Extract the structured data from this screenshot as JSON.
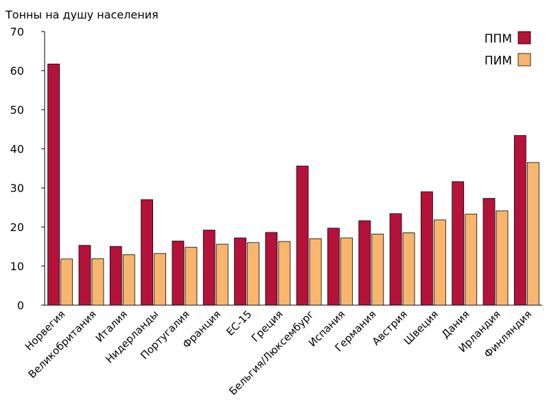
{
  "chart_data": {
    "type": "bar",
    "ylabel": "Тонны на душу населения",
    "ylim": [
      0,
      70
    ],
    "yticks": [
      0,
      10,
      20,
      30,
      40,
      50,
      60,
      70
    ],
    "grid": false,
    "legend_position": "top-right",
    "categories": [
      "Норвегия",
      "Великобритания",
      "Италия",
      "Нидерланды",
      "Португалия",
      "Франция",
      "ЕС-15",
      "Греция",
      "Бельгия/Люксембург",
      "Испания",
      "Германия",
      "Австрия",
      "Швеция",
      "Дания",
      "Ирландия",
      "Финляндия"
    ],
    "series": [
      {
        "name": "ППМ",
        "color": "#b5123a",
        "values": [
          61.7,
          15.3,
          15.0,
          27.0,
          16.4,
          19.2,
          17.2,
          18.6,
          35.6,
          19.7,
          21.6,
          23.4,
          29.0,
          31.6,
          27.3,
          43.4
        ]
      },
      {
        "name": "ПИМ",
        "color": "#f7b56e",
        "values": [
          11.8,
          11.9,
          12.9,
          13.2,
          14.8,
          15.6,
          16.0,
          16.3,
          17.0,
          17.2,
          18.2,
          18.5,
          21.8,
          23.3,
          24.1,
          36.5
        ]
      }
    ]
  }
}
